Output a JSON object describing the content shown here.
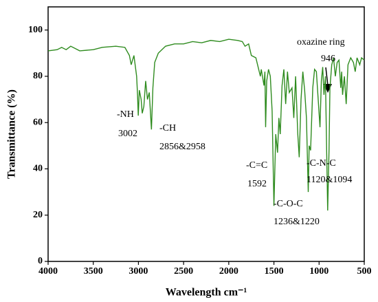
{
  "chart_data": {
    "type": "line",
    "x_label": "Wavelength cm⁻¹",
    "y_label": "Transmittance (%)",
    "color": "#2e8b1e",
    "xlim": [
      4000,
      500
    ],
    "ylim": [
      0,
      110
    ],
    "xticks": [
      4000,
      3500,
      3000,
      2500,
      2000,
      1500,
      1000,
      500
    ],
    "yticks": [
      0,
      20,
      40,
      60,
      80,
      100
    ],
    "x": [
      4000,
      3900,
      3850,
      3800,
      3750,
      3700,
      3650,
      3500,
      3400,
      3250,
      3150,
      3100,
      3080,
      3050,
      3020,
      3010,
      3002,
      2990,
      2970,
      2958,
      2940,
      2920,
      2900,
      2880,
      2856,
      2840,
      2820,
      2780,
      2700,
      2600,
      2500,
      2400,
      2300,
      2200,
      2100,
      2000,
      1900,
      1850,
      1820,
      1780,
      1750,
      1700,
      1650,
      1640,
      1610,
      1600,
      1592,
      1580,
      1560,
      1540,
      1520,
      1500,
      1480,
      1460,
      1445,
      1430,
      1410,
      1390,
      1370,
      1350,
      1330,
      1300,
      1280,
      1260,
      1236,
      1220,
      1200,
      1180,
      1160,
      1140,
      1120,
      1110,
      1094,
      1070,
      1050,
      1030,
      1010,
      990,
      975,
      960,
      946,
      930,
      915,
      905,
      890,
      880,
      860,
      840,
      820,
      800,
      780,
      760,
      750,
      740,
      720,
      700,
      680,
      650,
      620,
      600,
      580,
      550,
      530,
      500
    ],
    "values": [
      91,
      91.5,
      92.5,
      91.5,
      93,
      92,
      91,
      91.5,
      92.5,
      93,
      92.5,
      89,
      85,
      89,
      80,
      72,
      63,
      74,
      70,
      64,
      67,
      78,
      70,
      73,
      57,
      75,
      86,
      90,
      93,
      94,
      94,
      95,
      94.5,
      95.5,
      95,
      96,
      95.5,
      95,
      93,
      94,
      89,
      88,
      80,
      83,
      76,
      82,
      58,
      78,
      83,
      80,
      65,
      24,
      55,
      47,
      62,
      55,
      76,
      83,
      68,
      82,
      73,
      75,
      62,
      80,
      55,
      45,
      70,
      82,
      74,
      62,
      30,
      50,
      48,
      75,
      83,
      82,
      70,
      58,
      78,
      84,
      72,
      80,
      45,
      22,
      48,
      75,
      85,
      88,
      80,
      86,
      87,
      75,
      82,
      72,
      80,
      68,
      85,
      88,
      86,
      82,
      88,
      85,
      88,
      87
    ],
    "annotations": [
      [
        "-NH",
        "3002"
      ],
      [
        "-CH",
        "2856&2958"
      ],
      [
        "-C=C",
        "1592"
      ],
      [
        "-C-O-C",
        "1236&1220"
      ],
      [
        "-C-N-C",
        "1120&1094"
      ],
      [
        "oxazine ring",
        "946"
      ]
    ]
  }
}
